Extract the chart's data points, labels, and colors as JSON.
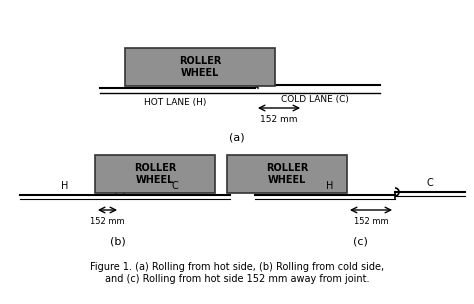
{
  "bg_color": "#ffffff",
  "roller_color": "#909090",
  "roller_edge": "#333333",
  "line_color": "#000000",
  "text_color": "#000000",
  "figure_caption": "Figure 1. (a) Rolling from hot side, (b) Rolling from cold side,\nand (c) Rolling from hot side 152 mm away from joint.",
  "label_a": "(a)",
  "label_b": "(b)",
  "label_c": "(c)",
  "roller_text": "ROLLER\nWHEEL",
  "dim_text": "152 mm",
  "hot_lane_label": "HOT LANE (H)",
  "cold_lane_label": "COLD LANE (C)",
  "h_label": "H",
  "c_label": "C"
}
